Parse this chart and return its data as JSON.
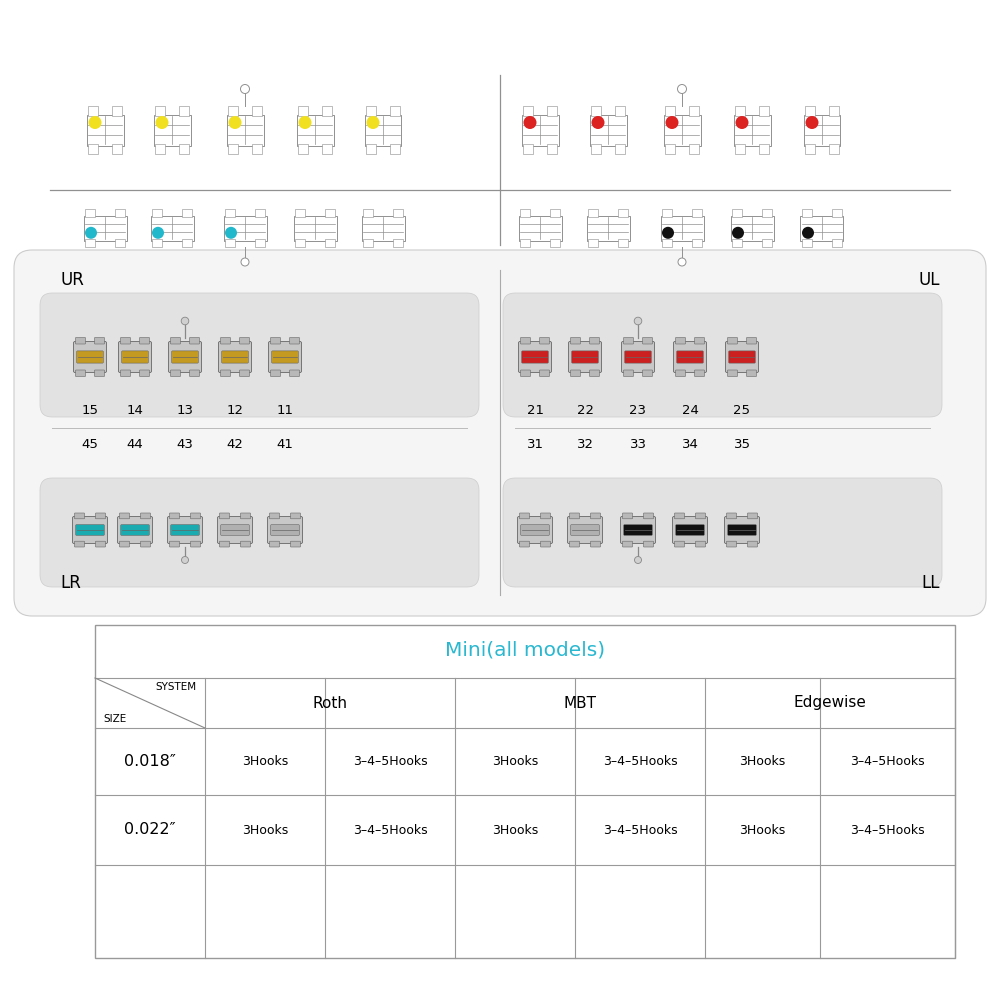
{
  "bg_color": "#ffffff",
  "title_color": "#29b8d0",
  "table_title": "Mini(all models)",
  "table_sizes": [
    "0.018″",
    "0.022″"
  ],
  "table_hooks": [
    [
      "3Hooks",
      "3–4–5Hooks",
      "3Hooks",
      "3–4–5Hooks",
      "3Hooks",
      "3–4–5Hooks"
    ],
    [
      "3Hooks",
      "3–4–5Hooks",
      "3Hooks",
      "3–4–5Hooks",
      "3Hooks",
      "3–4–5Hooks"
    ]
  ],
  "quadrant_labels": [
    "UR",
    "UL",
    "LR",
    "LL"
  ],
  "upper_numbers_left": [
    "15",
    "14",
    "13",
    "12",
    "11"
  ],
  "upper_numbers_right": [
    "21",
    "22",
    "23",
    "24",
    "25"
  ],
  "lower_numbers_left": [
    "45",
    "44",
    "43",
    "42",
    "41"
  ],
  "lower_numbers_right": [
    "31",
    "32",
    "33",
    "34",
    "35"
  ],
  "yellow": "#f0e020",
  "red": "#dd2222",
  "cyan": "#22b8cc",
  "black_dot": "#111111",
  "lc": "#909090",
  "lc2": "#bbbbbb",
  "panel_fill": "#efefef",
  "panel_stroke": "#cccccc"
}
